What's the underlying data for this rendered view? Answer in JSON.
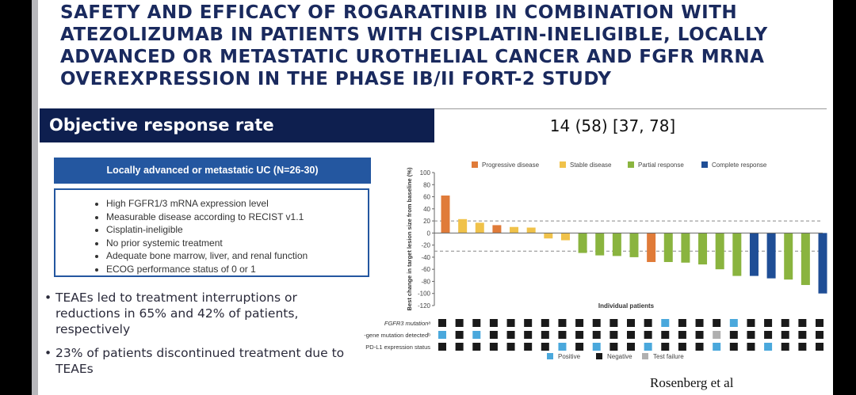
{
  "title": "SAFETY AND EFFICACY OF ROGARATINIB IN COMBINATION WITH ATEZOLIZUMAB IN PATIENTS WITH CISPLATIN-INELIGIBLE, LOCALLY ADVANCED OR METASTATIC UROTHELIAL CANCER AND FGFR MRNA OVEREXPRESSION IN THE PHASE IB/II FORT-2 STUDY",
  "orr": {
    "label": "Objective response rate",
    "value": "14 (58) [37, 78]"
  },
  "eligibility": {
    "header": "Locally advanced or metastatic UC (N=26-30)",
    "items": [
      "High FGFR1/3 mRNA expression level",
      "Measurable disease according to RECIST v1.1",
      "Cisplatin-ineligible",
      "No prior systemic treatment",
      "Adequate bone marrow, liver, and renal function",
      "ECOG performance status of 0 or 1"
    ]
  },
  "bullets": [
    "TEAEs led to treatment interruptions or reductions in 65% and 42% of patients, respectively",
    "23% of patients discontinued treatment due to TEAEs"
  ],
  "citation": "Rosenberg et al",
  "chart_data": {
    "type": "bar",
    "title": "",
    "xlabel": "Individual patients",
    "ylabel": "Best change in target lesion size from baseline (%)",
    "ylim": [
      -120,
      100
    ],
    "yticks": [
      100,
      80,
      60,
      40,
      20,
      0,
      -20,
      -40,
      -60,
      -80,
      -100,
      -120
    ],
    "reference_lines": [
      20,
      -30
    ],
    "legend": [
      {
        "name": "Progressive disease",
        "color": "#e07b39"
      },
      {
        "name": "Stable disease",
        "color": "#f0c24a"
      },
      {
        "name": "Partial response",
        "color": "#8ab43f"
      },
      {
        "name": "Complete response",
        "color": "#1f4e96"
      }
    ],
    "values": [
      62,
      23,
      17,
      13,
      10,
      9,
      -9,
      -12,
      -33,
      -37,
      -38,
      -40,
      -48,
      -48,
      -49,
      -52,
      -60,
      -71,
      -71,
      -75,
      -77,
      -86,
      -100
    ],
    "response": [
      0,
      1,
      1,
      0,
      1,
      1,
      1,
      1,
      2,
      2,
      2,
      2,
      0,
      2,
      2,
      2,
      2,
      2,
      3,
      3,
      2,
      2,
      3
    ],
    "biomarkers": {
      "rows": [
        "FGFR3 mutationᵃ",
        "-gene mutation detectedᵇ",
        "PD-L1 expression status"
      ],
      "status_legend": [
        {
          "name": "Positive",
          "color": "#4aa8dc"
        },
        {
          "name": "Negative",
          "color": "#1a1a1a"
        },
        {
          "name": "Test failure",
          "color": "#b0b0b0"
        }
      ],
      "values": [
        [
          1,
          1,
          1,
          1,
          1,
          1,
          1,
          1,
          1,
          1,
          1,
          1,
          1,
          0,
          1,
          1,
          1,
          0,
          1,
          1,
          1,
          1,
          1
        ],
        [
          0,
          1,
          0,
          1,
          1,
          1,
          1,
          1,
          1,
          1,
          1,
          1,
          1,
          1,
          1,
          1,
          2,
          1,
          1,
          1,
          1,
          1,
          1
        ],
        [
          1,
          1,
          1,
          1,
          1,
          1,
          1,
          0,
          1,
          0,
          1,
          1,
          0,
          1,
          1,
          1,
          0,
          1,
          1,
          0,
          1,
          1,
          1
        ]
      ]
    }
  }
}
